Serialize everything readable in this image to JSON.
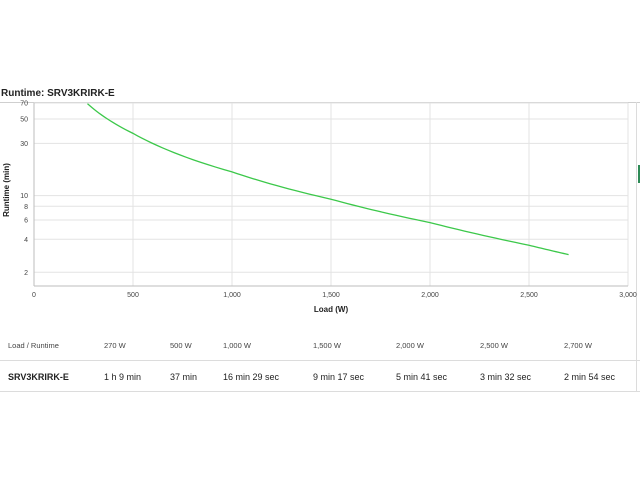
{
  "chart_data": {
    "type": "line",
    "title": "Runtime: SRV3KRIRK-E",
    "xlabel": "Load (W)",
    "ylabel": "Runtime (min)",
    "xlim": [
      0,
      3000
    ],
    "ylim": [
      1.5,
      70
    ],
    "y_scale": "log",
    "x_ticks": [
      {
        "value": 0,
        "label": "0"
      },
      {
        "value": 500,
        "label": "500"
      },
      {
        "value": 1000,
        "label": "1,000"
      },
      {
        "value": 1500,
        "label": "1,500"
      },
      {
        "value": 2000,
        "label": "2,000"
      },
      {
        "value": 2500,
        "label": "2,500"
      },
      {
        "value": 3000,
        "label": "3,000"
      }
    ],
    "y_ticks": [
      {
        "value": 2,
        "label": "2"
      },
      {
        "value": 4,
        "label": "4"
      },
      {
        "value": 6,
        "label": "6"
      },
      {
        "value": 8,
        "label": "8"
      },
      {
        "value": 10,
        "label": "10"
      },
      {
        "value": 30,
        "label": "30"
      },
      {
        "value": 50,
        "label": "50"
      },
      {
        "value": 70,
        "label": "70"
      }
    ],
    "grid": true,
    "series": [
      {
        "color": "#3cc84a",
        "x": [
          270,
          500,
          1000,
          1500,
          2000,
          2500,
          2700
        ],
        "y": [
          69,
          37,
          16.48,
          9.28,
          5.68,
          3.53,
          2.9
        ]
      }
    ]
  },
  "table": {
    "header": [
      "Load / Runtime",
      "270 W",
      "500 W",
      "1,000 W",
      "1,500 W",
      "2,000 W",
      "2,500 W",
      "2,700 W"
    ],
    "rows": [
      [
        "SRV3KRIRK-E",
        "1 h 9 min",
        "37 min",
        "16 min 29 sec",
        "9 min 17 sec",
        "5 min 41 sec",
        "3 min 32 sec",
        "2 min 54 sec"
      ]
    ]
  }
}
